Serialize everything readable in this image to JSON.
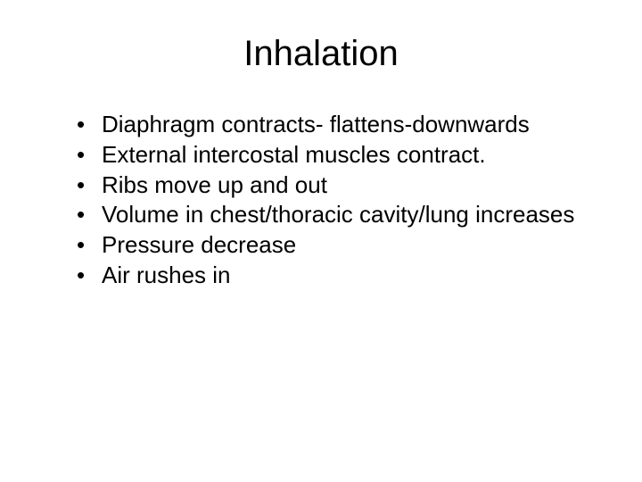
{
  "slide": {
    "background_color": "#ffffff",
    "text_color": "#000000",
    "font_family": "Arial, Helvetica, sans-serif",
    "title": "Inhalation",
    "title_fontsize": 40,
    "body_fontsize": 26,
    "bullets": [
      "Diaphragm contracts- flattens-downwards",
      "External intercostal muscles contract.",
      "Ribs move up and out",
      "Volume in chest/thoracic  cavity/lung increases",
      "Pressure decrease",
      "Air rushes in"
    ]
  }
}
